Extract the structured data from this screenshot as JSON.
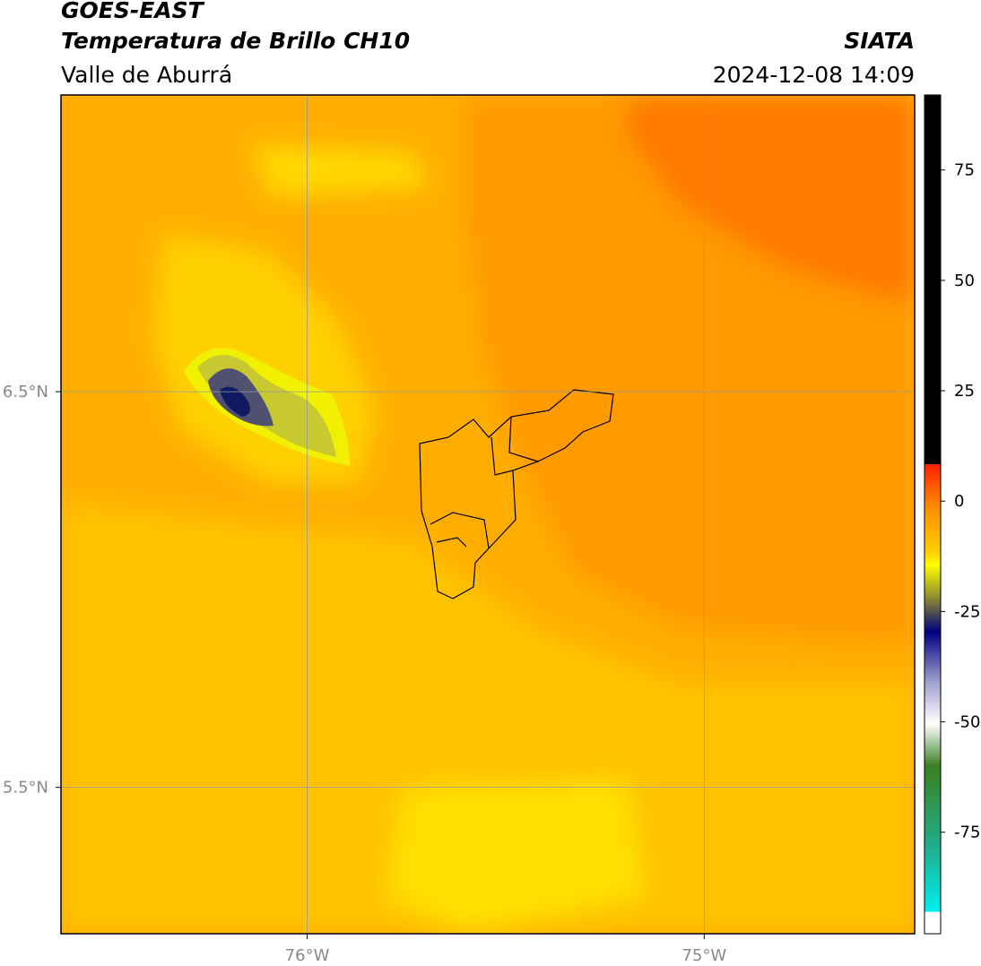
{
  "header": {
    "title": "GOES-EAST",
    "subtitle": "Temperatura de Brillo CH10",
    "region": "Valle de Aburrá",
    "source": "SIATA",
    "datetime": "2024-12-08 14:09"
  },
  "map": {
    "xlim": [
      -76.62,
      -74.47
    ],
    "ylim": [
      5.13,
      7.25
    ],
    "xticks": [
      {
        "value": -76,
        "label": "76°W"
      },
      {
        "value": -75,
        "label": "75°W"
      }
    ],
    "yticks": [
      {
        "value": 6.5,
        "label": "6.5°N"
      },
      {
        "value": 5.5,
        "label": "5.5°N"
      }
    ]
  },
  "colorbar": {
    "lim": [
      -98,
      92
    ],
    "ticks": [
      75,
      50,
      25,
      0,
      -25,
      -50,
      -75
    ]
  }
}
